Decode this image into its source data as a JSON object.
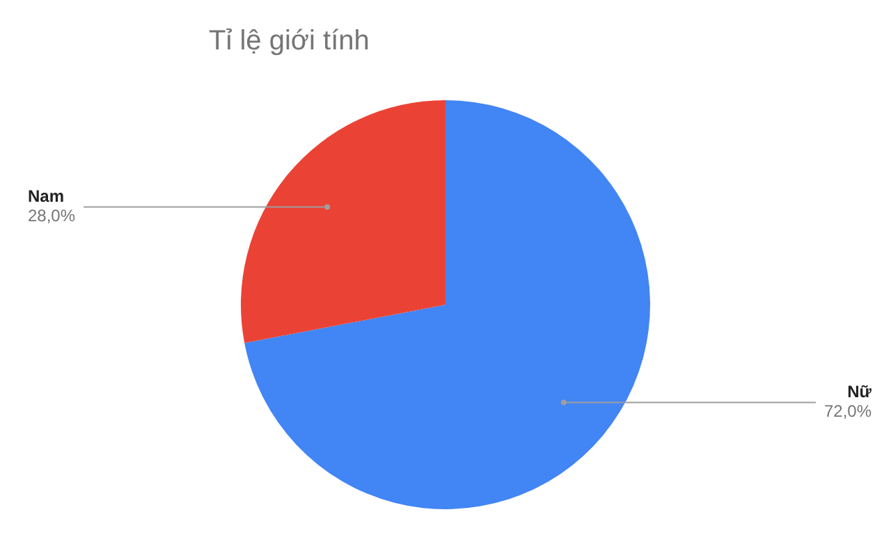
{
  "chart_data": {
    "type": "pie",
    "title": "Tỉ lệ giới tính",
    "categories": [
      "Nữ",
      "Nam"
    ],
    "values": [
      72,
      28
    ],
    "colors": [
      "#4285f4",
      "#ea4335"
    ],
    "value_labels": [
      "72,0%",
      "28,0%"
    ],
    "legend": false
  }
}
